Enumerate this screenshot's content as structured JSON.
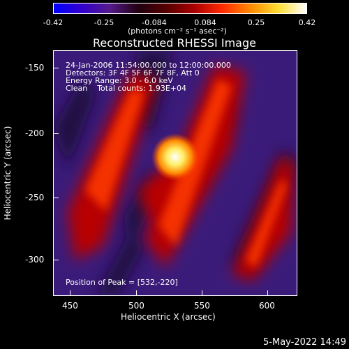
{
  "colorbar": {
    "tick_labels": [
      "-0.42",
      "-0.25",
      "-0.084",
      "0.084",
      "0.25",
      "0.42"
    ],
    "units": "(photons cm⁻² s⁻¹ asec⁻²)",
    "colors": [
      "#0000ff",
      "#3300cc",
      "#551a8b",
      "#200010",
      "#550000",
      "#aa0000",
      "#ff2a00",
      "#ff8800",
      "#ffdd33",
      "#ffffff"
    ]
  },
  "plot": {
    "title": "Reconstructed RHESSI Image",
    "xlabel": "Heliocentric X (arcsec)",
    "ylabel": "Heliocentric Y (arcsec)",
    "x_ticks": [
      "450",
      "500",
      "550",
      "600"
    ],
    "y_ticks": [
      "-150",
      "-200",
      "-250",
      "-300"
    ]
  },
  "info": {
    "time": "24-Jan-2006 11:54:00.000 to 12:00:00.000",
    "detectors": "Detectors: 3F 4F 5F 6F 7F 8F, Att 0",
    "energy": "Energy Range: 3.0 - 6.0 keV",
    "clean": "Clean    Total counts: 1.93E+04",
    "peak": "Position of Peak = [532,-220]"
  },
  "timestamp": "5-May-2022 14:49"
}
